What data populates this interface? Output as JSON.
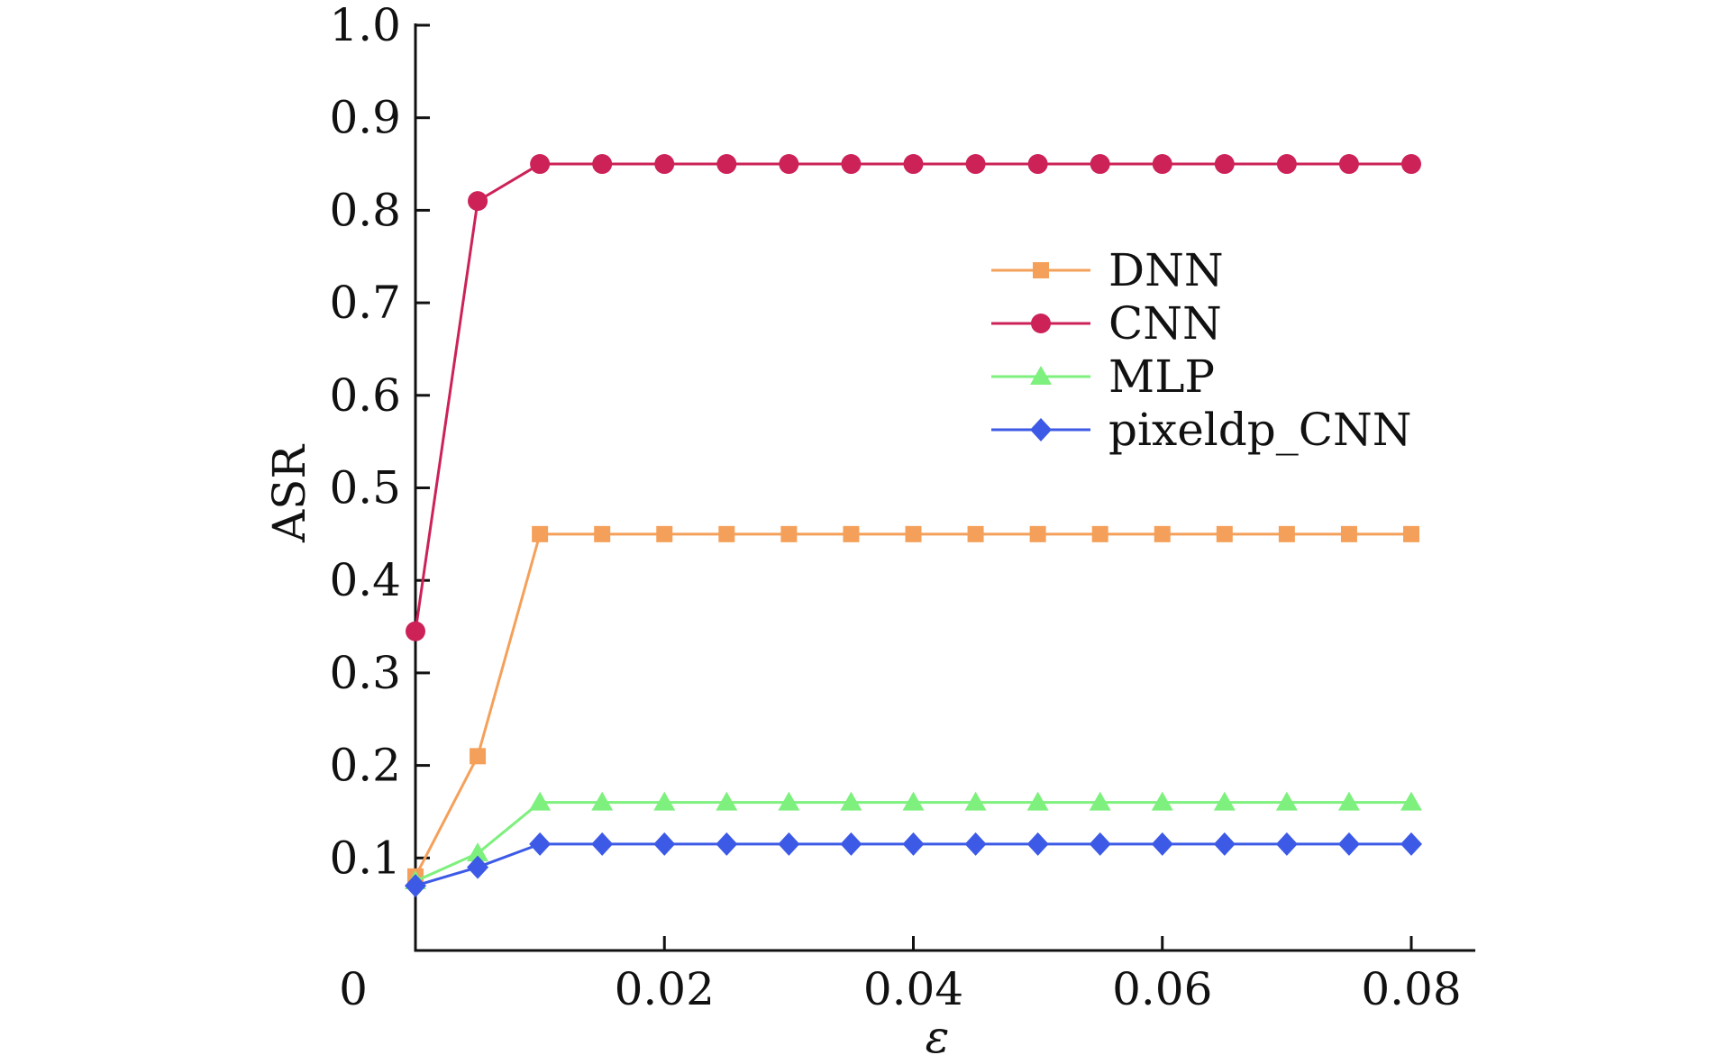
{
  "chart_data": {
    "type": "line",
    "title": "",
    "xlabel": "ε",
    "ylabel": "ASR",
    "xlim": [
      0,
      0.085
    ],
    "ylim": [
      0,
      1.0
    ],
    "x_ticks": [
      0.02,
      0.04,
      0.06,
      0.08
    ],
    "x_tick_labels": [
      "0.02",
      "0.04",
      "0.06",
      "0.08"
    ],
    "y_ticks": [
      0.1,
      0.2,
      0.3,
      0.4,
      0.5,
      0.6,
      0.7,
      0.8,
      0.9,
      1.0
    ],
    "y_tick_labels": [
      "0.1",
      "0.2",
      "0.3",
      "0.4",
      "0.5",
      "0.6",
      "0.7",
      "0.8",
      "0.9",
      "1.0"
    ],
    "origin_label": "0",
    "grid": false,
    "legend_position": "right",
    "x": [
      0,
      0.005,
      0.01,
      0.015,
      0.02,
      0.025,
      0.03,
      0.035,
      0.04,
      0.045,
      0.05,
      0.055,
      0.06,
      0.065,
      0.07,
      0.075,
      0.08
    ],
    "series": [
      {
        "name": "DNN",
        "color": "#f5a05a",
        "marker": "square",
        "values": [
          0.08,
          0.21,
          0.45,
          0.45,
          0.45,
          0.45,
          0.45,
          0.45,
          0.45,
          0.45,
          0.45,
          0.45,
          0.45,
          0.45,
          0.45,
          0.45,
          0.45
        ]
      },
      {
        "name": "CNN",
        "color": "#cc2258",
        "marker": "circle",
        "values": [
          0.345,
          0.81,
          0.85,
          0.85,
          0.85,
          0.85,
          0.85,
          0.85,
          0.85,
          0.85,
          0.85,
          0.85,
          0.85,
          0.85,
          0.85,
          0.85,
          0.85
        ]
      },
      {
        "name": "MLP",
        "color": "#7ef07e",
        "marker": "triangle",
        "values": [
          0.075,
          0.105,
          0.16,
          0.16,
          0.16,
          0.16,
          0.16,
          0.16,
          0.16,
          0.16,
          0.16,
          0.16,
          0.16,
          0.16,
          0.16,
          0.16,
          0.16
        ]
      },
      {
        "name": "pixeldp_CNN",
        "color": "#3c5ae6",
        "marker": "diamond",
        "values": [
          0.07,
          0.09,
          0.115,
          0.115,
          0.115,
          0.115,
          0.115,
          0.115,
          0.115,
          0.115,
          0.115,
          0.115,
          0.115,
          0.115,
          0.115,
          0.115,
          0.115
        ]
      }
    ]
  }
}
